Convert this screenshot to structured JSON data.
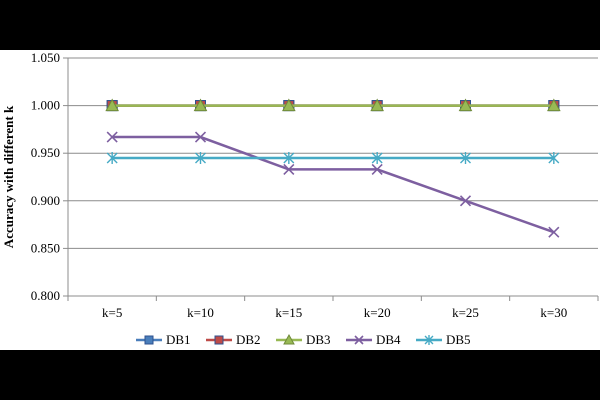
{
  "chart_data": {
    "type": "line",
    "title": "",
    "xlabel": "",
    "ylabel": "Accuracy with different k",
    "categories": [
      "k=5",
      "k=10",
      "k=15",
      "k=20",
      "k=25",
      "k=30"
    ],
    "ylim": [
      0.8,
      1.05
    ],
    "yticks": [
      "0.800",
      "0.850",
      "0.900",
      "0.950",
      "1.000",
      "1.050"
    ],
    "grid": true,
    "legend_position": "bottom",
    "series": [
      {
        "name": "DB1",
        "values": [
          1.0,
          1.0,
          1.0,
          1.0,
          1.0,
          1.0
        ],
        "color": "#4a7ebb",
        "marker": "square"
      },
      {
        "name": "DB2",
        "values": [
          1.0,
          1.0,
          1.0,
          1.0,
          1.0,
          1.0
        ],
        "color": "#be4b48",
        "marker": "square"
      },
      {
        "name": "DB3",
        "values": [
          1.0,
          1.0,
          1.0,
          1.0,
          1.0,
          1.0
        ],
        "color": "#98b954",
        "marker": "triangle"
      },
      {
        "name": "DB4",
        "values": [
          0.967,
          0.967,
          0.933,
          0.933,
          0.9,
          0.867
        ],
        "color": "#7d5fa0",
        "marker": "x"
      },
      {
        "name": "DB5",
        "values": [
          0.945,
          0.945,
          0.945,
          0.945,
          0.945,
          0.945
        ],
        "color": "#46aac5",
        "marker": "star"
      }
    ]
  }
}
